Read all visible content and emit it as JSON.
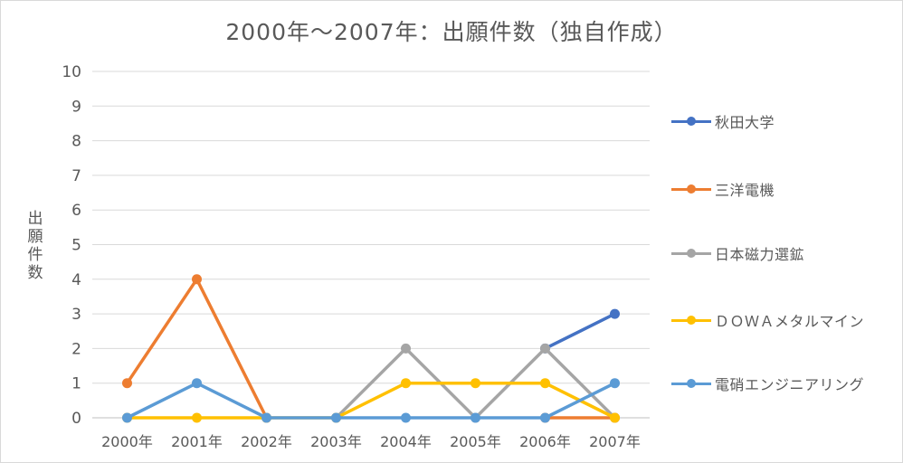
{
  "chart_data": {
    "type": "line",
    "title": "2000年～2007年：出願件数（独自作成）",
    "ylabel": "出願件数",
    "xlabel": "",
    "categories": [
      "2000年",
      "2001年",
      "2002年",
      "2003年",
      "2004年",
      "2005年",
      "2006年",
      "2007年"
    ],
    "ylim": [
      0,
      10
    ],
    "yticks": [
      0,
      1,
      2,
      3,
      4,
      5,
      6,
      7,
      8,
      9,
      10
    ],
    "grid": true,
    "legend_position": "right",
    "series": [
      {
        "name": "秋田大学",
        "color": "#4472c4",
        "values": [
          null,
          null,
          null,
          null,
          null,
          null,
          2,
          3
        ]
      },
      {
        "name": "三洋電機",
        "color": "#ed7d31",
        "values": [
          1,
          4,
          0,
          null,
          null,
          null,
          0,
          0
        ]
      },
      {
        "name": "日本磁力選鉱",
        "color": "#a5a5a5",
        "values": [
          null,
          null,
          null,
          0,
          2,
          0,
          2,
          0
        ]
      },
      {
        "name": "ＤＯＷＡメタルマイン",
        "color": "#ffc000",
        "values": [
          0,
          0,
          0,
          0,
          1,
          1,
          1,
          0
        ]
      },
      {
        "name": "電硝エンジニアリング",
        "color": "#5b9bd5",
        "values": [
          0,
          1,
          0,
          0,
          0,
          0,
          0,
          1
        ]
      }
    ]
  }
}
